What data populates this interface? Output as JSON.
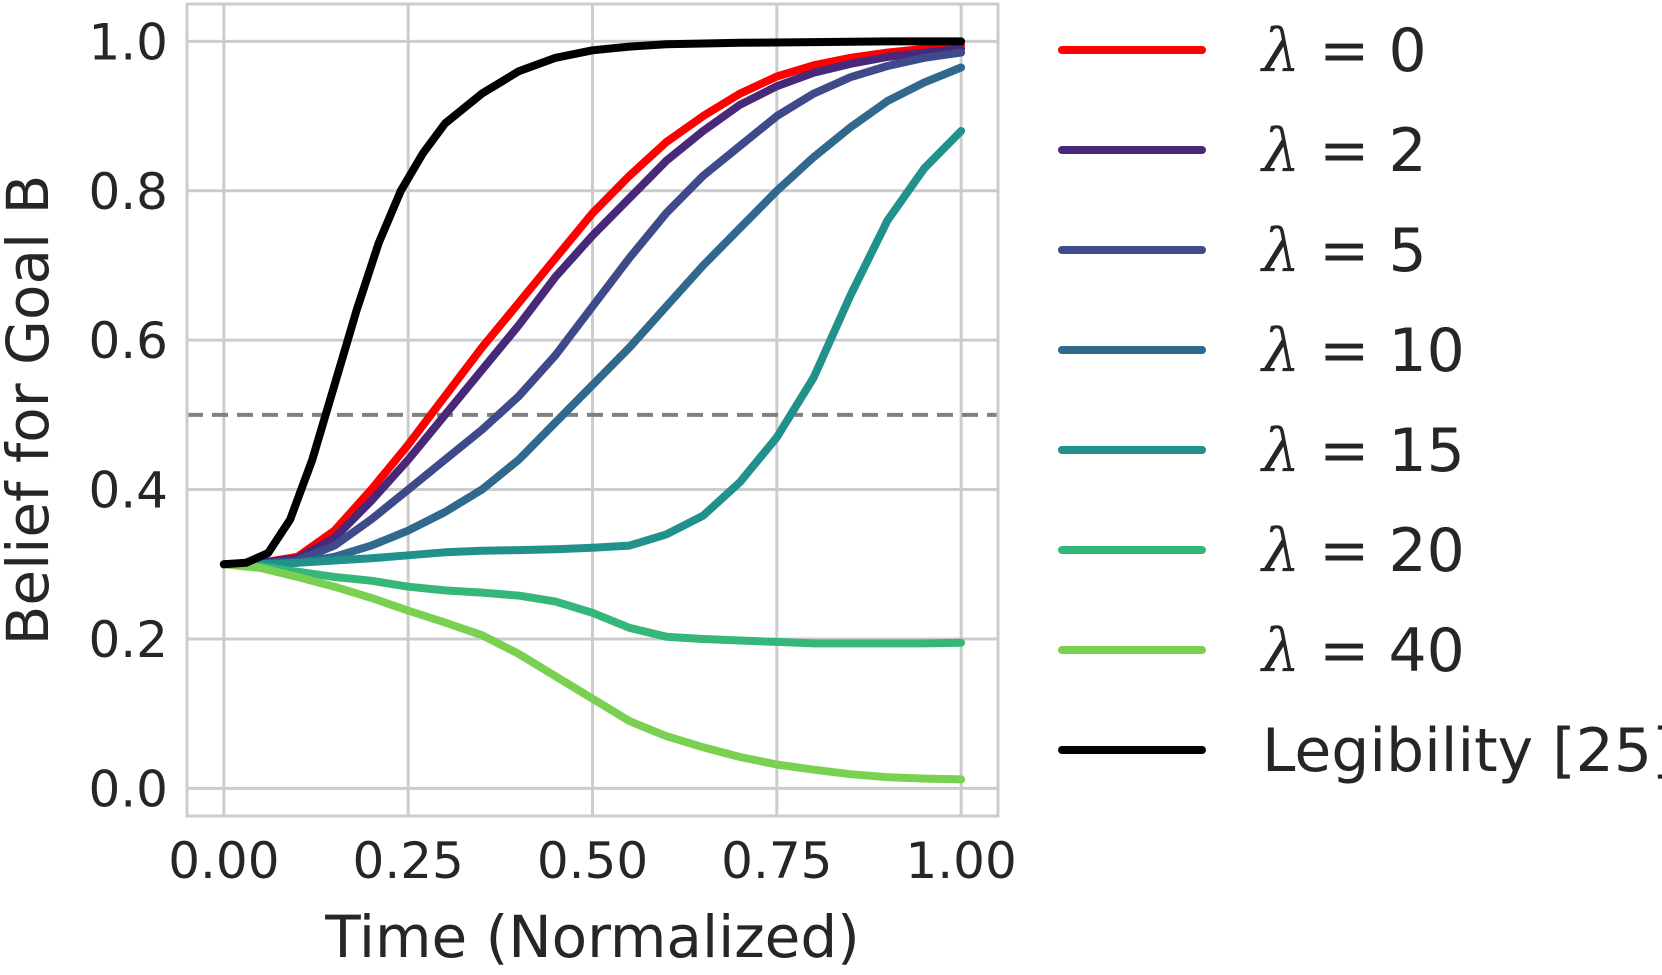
{
  "chart_data": {
    "type": "line",
    "title": "",
    "xlabel": "Time (Normalized)",
    "ylabel": "Belief for Goal B",
    "xlim": [
      -0.05,
      1.05
    ],
    "ylim": [
      -0.037,
      1.05
    ],
    "xticks": [
      0.0,
      0.25,
      0.5,
      0.75,
      1.0
    ],
    "xtick_labels": [
      "0.00",
      "0.25",
      "0.50",
      "0.75",
      "1.00"
    ],
    "yticks": [
      0.0,
      0.2,
      0.4,
      0.6,
      0.8,
      1.0
    ],
    "ytick_labels": [
      "0.0",
      "0.2",
      "0.4",
      "0.6",
      "0.8",
      "1.0"
    ],
    "grid": true,
    "legend_position": "outside-right",
    "reference_line": {
      "y": 0.5,
      "style": "dashed",
      "color": "#808080"
    },
    "series": [
      {
        "name": "λ = 0",
        "symbol": "λ",
        "value_text": " = 0",
        "color": "#ff0000",
        "x": [
          0.0,
          0.05,
          0.1,
          0.15,
          0.2,
          0.25,
          0.3,
          0.35,
          0.4,
          0.45,
          0.5,
          0.55,
          0.6,
          0.65,
          0.7,
          0.75,
          0.8,
          0.85,
          0.9,
          0.95,
          1.0
        ],
        "y": [
          0.3,
          0.302,
          0.31,
          0.345,
          0.4,
          0.46,
          0.525,
          0.59,
          0.65,
          0.71,
          0.77,
          0.82,
          0.865,
          0.9,
          0.93,
          0.953,
          0.968,
          0.978,
          0.985,
          0.99,
          0.995
        ]
      },
      {
        "name": "λ = 2",
        "symbol": "λ",
        "value_text": " = 2",
        "color": "#482878",
        "x": [
          0.0,
          0.05,
          0.1,
          0.15,
          0.2,
          0.25,
          0.3,
          0.35,
          0.4,
          0.45,
          0.5,
          0.55,
          0.6,
          0.65,
          0.7,
          0.75,
          0.8,
          0.85,
          0.9,
          0.95,
          1.0
        ],
        "y": [
          0.3,
          0.302,
          0.308,
          0.335,
          0.385,
          0.44,
          0.5,
          0.56,
          0.62,
          0.685,
          0.74,
          0.79,
          0.84,
          0.88,
          0.915,
          0.94,
          0.958,
          0.97,
          0.979,
          0.985,
          0.99
        ]
      },
      {
        "name": "λ = 5",
        "symbol": "λ",
        "value_text": " = 5",
        "color": "#3e4a89",
        "x": [
          0.0,
          0.05,
          0.1,
          0.15,
          0.2,
          0.25,
          0.3,
          0.35,
          0.4,
          0.45,
          0.5,
          0.55,
          0.6,
          0.65,
          0.7,
          0.75,
          0.8,
          0.85,
          0.9,
          0.95,
          1.0
        ],
        "y": [
          0.3,
          0.301,
          0.305,
          0.325,
          0.36,
          0.4,
          0.44,
          0.48,
          0.525,
          0.58,
          0.645,
          0.71,
          0.77,
          0.82,
          0.86,
          0.9,
          0.93,
          0.952,
          0.967,
          0.978,
          0.985
        ]
      },
      {
        "name": "λ = 10",
        "symbol": "λ",
        "value_text": " = 10",
        "color": "#31688e",
        "x": [
          0.0,
          0.05,
          0.1,
          0.15,
          0.2,
          0.25,
          0.3,
          0.35,
          0.4,
          0.45,
          0.5,
          0.55,
          0.6,
          0.65,
          0.7,
          0.75,
          0.8,
          0.85,
          0.9,
          0.95,
          1.0
        ],
        "y": [
          0.3,
          0.3,
          0.302,
          0.31,
          0.325,
          0.345,
          0.37,
          0.4,
          0.44,
          0.49,
          0.54,
          0.59,
          0.645,
          0.7,
          0.75,
          0.8,
          0.845,
          0.885,
          0.92,
          0.945,
          0.965
        ]
      },
      {
        "name": "λ = 15",
        "symbol": "λ",
        "value_text": " = 15",
        "color": "#21918c",
        "x": [
          0.0,
          0.05,
          0.1,
          0.15,
          0.2,
          0.25,
          0.3,
          0.35,
          0.4,
          0.45,
          0.5,
          0.55,
          0.6,
          0.65,
          0.7,
          0.75,
          0.8,
          0.85,
          0.9,
          0.95,
          1.0
        ],
        "y": [
          0.3,
          0.3,
          0.302,
          0.305,
          0.308,
          0.312,
          0.316,
          0.318,
          0.319,
          0.32,
          0.322,
          0.325,
          0.34,
          0.365,
          0.41,
          0.47,
          0.55,
          0.66,
          0.76,
          0.83,
          0.88
        ]
      },
      {
        "name": "λ = 20",
        "symbol": "λ",
        "value_text": " = 20",
        "color": "#35b779",
        "x": [
          0.0,
          0.05,
          0.1,
          0.15,
          0.2,
          0.25,
          0.3,
          0.35,
          0.4,
          0.45,
          0.5,
          0.55,
          0.6,
          0.65,
          0.7,
          0.75,
          0.8,
          0.85,
          0.9,
          0.95,
          1.0
        ],
        "y": [
          0.3,
          0.297,
          0.29,
          0.283,
          0.278,
          0.27,
          0.265,
          0.262,
          0.258,
          0.25,
          0.235,
          0.215,
          0.203,
          0.2,
          0.198,
          0.196,
          0.194,
          0.194,
          0.194,
          0.194,
          0.195
        ]
      },
      {
        "name": "λ = 40",
        "symbol": "λ",
        "value_text": " = 40",
        "color": "#7ad151",
        "x": [
          0.0,
          0.05,
          0.1,
          0.15,
          0.2,
          0.25,
          0.3,
          0.35,
          0.4,
          0.45,
          0.5,
          0.55,
          0.6,
          0.65,
          0.7,
          0.75,
          0.8,
          0.85,
          0.9,
          0.95,
          1.0
        ],
        "y": [
          0.3,
          0.295,
          0.283,
          0.27,
          0.255,
          0.238,
          0.222,
          0.205,
          0.18,
          0.15,
          0.12,
          0.09,
          0.07,
          0.055,
          0.042,
          0.032,
          0.025,
          0.019,
          0.015,
          0.013,
          0.012
        ]
      },
      {
        "name": "Legibility [25]",
        "symbol": "",
        "value_text": "Legibility [25]",
        "color": "#000000",
        "x": [
          0.0,
          0.03,
          0.06,
          0.09,
          0.12,
          0.15,
          0.18,
          0.21,
          0.24,
          0.27,
          0.3,
          0.35,
          0.4,
          0.45,
          0.5,
          0.55,
          0.6,
          0.7,
          0.8,
          0.9,
          1.0
        ],
        "y": [
          0.3,
          0.302,
          0.315,
          0.36,
          0.44,
          0.54,
          0.64,
          0.73,
          0.8,
          0.85,
          0.89,
          0.93,
          0.96,
          0.978,
          0.988,
          0.993,
          0.996,
          0.998,
          0.999,
          1.0,
          1.0
        ]
      }
    ]
  }
}
